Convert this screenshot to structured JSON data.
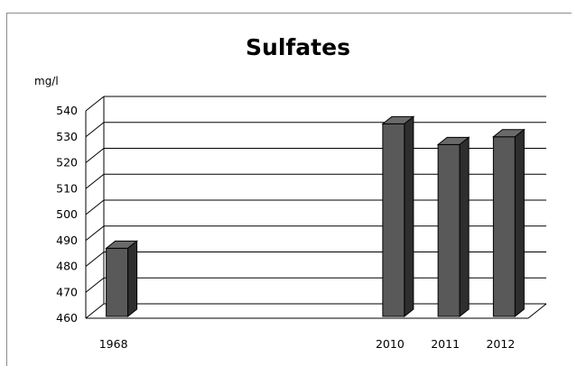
{
  "chart_data": {
    "type": "bar",
    "title": "Sulfates",
    "ylabel": "mg/l",
    "xlabel": "",
    "categories": [
      "1968",
      "",
      "",
      "",
      "",
      "2010",
      "2011",
      "2012"
    ],
    "values": [
      487,
      null,
      null,
      null,
      null,
      535,
      527,
      530
    ],
    "ylim": [
      460,
      540
    ],
    "yticks": [
      460,
      470,
      480,
      490,
      500,
      510,
      520,
      530,
      540
    ],
    "grid": true,
    "legend": "none",
    "bar_color": "#595959"
  }
}
